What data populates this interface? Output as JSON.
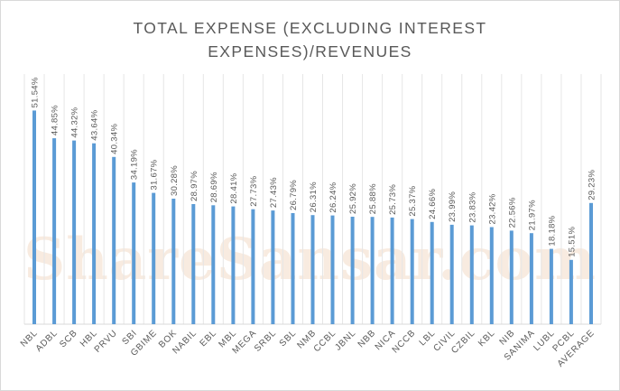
{
  "chart_data": {
    "type": "bar",
    "title": "TOTAL EXPENSE (EXCLUDING INTEREST EXPENSES)/REVENUES",
    "title_lines": [
      "TOTAL EXPENSE (EXCLUDING INTEREST",
      "EXPENSES)/REVENUES"
    ],
    "xlabel": "",
    "ylabel": "",
    "ylim": [
      0,
      60
    ],
    "grid": "vertical",
    "legend": "none",
    "bar_color": "#5b9bd5",
    "categories": [
      "NBL",
      "ADBL",
      "SCB",
      "HBL",
      "PRVU",
      "SBI",
      "GBIME",
      "BOK",
      "NABIL",
      "EBL",
      "MBL",
      "MEGA",
      "SRBL",
      "SBL",
      "NMB",
      "CCBL",
      "JBNL",
      "NBB",
      "NICA",
      "NCCB",
      "LBL",
      "CIVIL",
      "CZBIL",
      "KBL",
      "NIB",
      "SANIMA",
      "LUBL",
      "PCBL",
      "AVERAGE"
    ],
    "values": [
      51.54,
      44.85,
      44.32,
      43.64,
      40.34,
      34.19,
      31.67,
      30.28,
      28.97,
      28.69,
      28.41,
      27.73,
      27.43,
      26.79,
      26.31,
      26.24,
      25.92,
      25.88,
      25.73,
      25.37,
      24.66,
      23.99,
      23.83,
      23.42,
      22.56,
      21.97,
      18.18,
      15.51,
      29.23
    ],
    "data_labels": [
      "51.54%",
      "44.85%",
      "44.32%",
      "43.64%",
      "40.34%",
      "34.19%",
      "31.67%",
      "30.28%",
      "28.97%",
      "28.69%",
      "28.41%",
      "27.73%",
      "27.43%",
      "26.79%",
      "26.31%",
      "26.24%",
      "25.92%",
      "25.88%",
      "25.73%",
      "25.37%",
      "24.66%",
      "23.99%",
      "23.83%",
      "23.42%",
      "22.56%",
      "21.97%",
      "18.18%",
      "15.51%",
      "29.23%"
    ]
  },
  "watermark": "ShareSansar.com"
}
